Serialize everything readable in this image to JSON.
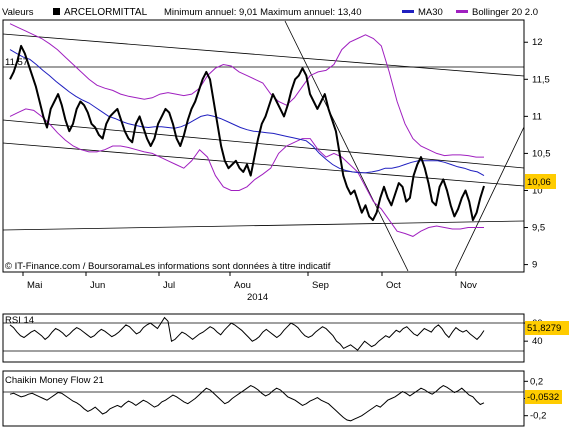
{
  "header": {
    "valeurs_label": "Valeurs",
    "instrument": "ARCELORMITTAL",
    "min_max": "Minimum annuel: 9,01 Maximum annuel: 13,40",
    "ma_legend": "MA30",
    "bollinger_legend": "Bollinger 20 2.0"
  },
  "footer": {
    "source": "© IT-Finance.com / BoursoramaLes informations sont données à titre indicatif"
  },
  "colors": {
    "price": "#000000",
    "ma": "#2020c0",
    "bollinger": "#a020c0",
    "trend": "#000000",
    "label_box": "#ffcc00"
  },
  "chart_data": [
    {
      "type": "line",
      "title": "ARCELORMITTAL",
      "x_axis": {
        "labels": [
          "Mai",
          "Jun",
          "Jul",
          "Aou",
          "Sep",
          "Oct",
          "Nov"
        ],
        "year_label": "2014"
      },
      "y_axis": {
        "ticks": [
          "12",
          "11,5",
          "11",
          "10,5",
          "10",
          "9,5",
          "9"
        ],
        "ylim": [
          8.9,
          12.3
        ],
        "position": "right"
      },
      "left_label": "11,57",
      "last_value_label": "10,06",
      "series": [
        {
          "name": "ARCELORMITTAL",
          "values": [
            11.5,
            11.6,
            11.75,
            11.95,
            11.85,
            11.7,
            11.55,
            11.4,
            11.2,
            11.0,
            10.85,
            11.1,
            11.2,
            11.3,
            11.15,
            10.95,
            10.8,
            10.9,
            11.1,
            11.2,
            11.15,
            11.05,
            10.9,
            10.85,
            10.75,
            10.7,
            10.9,
            11.0,
            11.05,
            11.1,
            10.95,
            10.8,
            10.7,
            10.65,
            10.9,
            11.0,
            10.85,
            10.7,
            10.6,
            10.7,
            10.9,
            11.0,
            11.1,
            11.05,
            10.9,
            10.7,
            10.6,
            10.75,
            10.95,
            11.1,
            11.2,
            11.35,
            11.5,
            11.6,
            11.5,
            11.2,
            10.9,
            10.6,
            10.4,
            10.3,
            10.35,
            10.4,
            10.3,
            10.25,
            10.35,
            10.2,
            10.45,
            10.7,
            10.9,
            11.0,
            11.15,
            11.3,
            11.2,
            11.1,
            11.0,
            11.15,
            11.35,
            11.5,
            11.55,
            11.65,
            11.55,
            11.3,
            11.2,
            11.1,
            11.2,
            11.3,
            11.1,
            10.95,
            10.8,
            10.5,
            10.2,
            10.05,
            9.95,
            10.0,
            9.85,
            9.7,
            9.8,
            9.65,
            9.6,
            9.7,
            9.9,
            10.05,
            9.9,
            9.8,
            9.95,
            10.1,
            10.05,
            9.85,
            9.9,
            10.2,
            10.35,
            10.45,
            10.3,
            10.1,
            9.85,
            9.8,
            10.05,
            10.15,
            10.0,
            9.8,
            9.65,
            9.75,
            9.9,
            10.0,
            9.85,
            9.6,
            9.7,
            9.9,
            10.06
          ]
        },
        {
          "name": "MA30",
          "values": [
            11.9,
            11.85,
            11.8,
            11.77,
            11.7,
            11.62,
            11.55,
            11.47,
            11.4,
            11.33,
            11.27,
            11.22,
            11.18,
            11.12,
            11.06,
            11.0,
            10.97,
            10.93,
            10.9,
            10.88,
            10.86,
            10.85,
            10.86,
            10.86,
            10.85,
            10.84,
            10.86,
            10.9,
            10.95,
            11.0,
            11.02,
            11.0,
            10.97,
            10.93,
            10.89,
            10.85,
            10.82,
            10.8,
            10.79,
            10.78,
            10.77,
            10.75,
            10.73,
            10.71,
            10.69,
            10.67,
            10.6,
            10.5,
            10.42,
            10.35,
            10.3,
            10.27,
            10.25,
            10.24,
            10.24,
            10.25,
            10.27,
            10.3,
            10.3,
            10.32,
            10.35,
            10.38,
            10.4,
            10.4,
            10.4,
            10.4,
            10.38,
            10.35,
            10.32,
            10.3,
            10.27,
            10.25,
            10.2
          ]
        },
        {
          "name": "Bollinger 20 2.0 (haut)",
          "values": [
            12.25,
            12.2,
            12.15,
            12.1,
            12.05,
            11.98,
            11.9,
            11.8,
            11.7,
            11.6,
            11.5,
            11.42,
            11.38,
            11.35,
            11.3,
            11.27,
            11.25,
            11.23,
            11.25,
            11.3,
            11.32,
            11.3,
            11.28,
            11.3,
            11.38,
            11.55,
            11.65,
            11.7,
            11.68,
            11.6,
            11.55,
            11.5,
            11.45,
            11.3,
            11.2,
            11.15,
            11.25,
            11.4,
            11.55,
            11.6,
            11.62,
            11.7,
            11.9,
            12.0,
            12.05,
            12.1,
            12.05,
            11.95,
            11.6,
            11.2,
            10.9,
            10.7,
            10.6,
            10.55,
            10.5,
            10.47,
            10.48,
            10.48,
            10.47,
            10.45,
            10.45
          ]
        },
        {
          "name": "Bollinger 20 2.0 (bas)",
          "values": [
            11.0,
            11.05,
            11.1,
            11.08,
            11.0,
            10.9,
            10.78,
            10.68,
            10.6,
            10.55,
            10.52,
            10.52,
            10.55,
            10.6,
            10.6,
            10.58,
            10.55,
            10.52,
            10.5,
            10.45,
            10.4,
            10.35,
            10.3,
            10.4,
            10.55,
            10.45,
            10.2,
            10.05,
            10.0,
            10.0,
            10.05,
            10.15,
            10.22,
            10.3,
            10.5,
            10.6,
            10.65,
            10.7,
            10.7,
            10.55,
            10.45,
            10.5,
            10.45,
            10.35,
            10.25,
            10.05,
            9.85,
            9.75,
            9.6,
            9.45,
            9.42,
            9.38,
            9.45,
            9.5,
            9.52,
            9.5,
            9.48,
            9.48,
            9.5,
            9.5,
            9.5
          ]
        }
      ]
    },
    {
      "type": "line",
      "title": "RSI 14",
      "y_axis": {
        "ticks": [
          "60",
          "40"
        ],
        "ylim": [
          17,
          70
        ],
        "position": "right"
      },
      "last_value_label": "51,8279",
      "series": [
        {
          "name": "RSI 14",
          "values": [
            58,
            55,
            50,
            46,
            44,
            47,
            50,
            52,
            49,
            46,
            42,
            45,
            50,
            54,
            52,
            49,
            45,
            48,
            52,
            55,
            53,
            50,
            47,
            44,
            46,
            50,
            53,
            51,
            48,
            45,
            47,
            50,
            54,
            58,
            56,
            52,
            48,
            50,
            55,
            58,
            60,
            57,
            54,
            60,
            66,
            62,
            40,
            42,
            46,
            50,
            48,
            45,
            42,
            45,
            48,
            50,
            53,
            56,
            54,
            50,
            47,
            52,
            56,
            60,
            58,
            55,
            52,
            48,
            44,
            40,
            42,
            45,
            50,
            53,
            50,
            47,
            44,
            47,
            52,
            56,
            60,
            58,
            55,
            50,
            46,
            44,
            46,
            50,
            53,
            56,
            54,
            50,
            46,
            40,
            37,
            32,
            34,
            36,
            33,
            30,
            35,
            40,
            37,
            34,
            36,
            40,
            43,
            46,
            44,
            48,
            52,
            50,
            54,
            56,
            52,
            48,
            46,
            50,
            54,
            52,
            50,
            55,
            58,
            54,
            48,
            44,
            50,
            55,
            52,
            50,
            52,
            48,
            45,
            42,
            46,
            51.8
          ]
        }
      ]
    },
    {
      "type": "line",
      "title": "Chaikin Money Flow 21",
      "y_axis": {
        "ticks": [
          "0,2",
          "0",
          "-0,2"
        ],
        "ylim": [
          -0.32,
          0.32
        ],
        "position": "right"
      },
      "last_value_label": "-0,0532",
      "series": [
        {
          "name": "Chaikin Money Flow 21",
          "values": [
            0.05,
            0.06,
            0.04,
            0.02,
            0.03,
            0.05,
            0.06,
            0.04,
            0.02,
            0.0,
            -0.02,
            0.01,
            0.04,
            0.07,
            0.06,
            0.03,
            0.0,
            -0.03,
            -0.05,
            -0.08,
            -0.12,
            -0.15,
            -0.13,
            -0.1,
            -0.14,
            -0.18,
            -0.16,
            -0.12,
            -0.1,
            -0.08,
            -0.1,
            -0.06,
            -0.03,
            -0.05,
            -0.08,
            -0.05,
            -0.02,
            -0.04,
            -0.07,
            -0.1,
            -0.08,
            -0.04,
            -0.02,
            0.01,
            0.04,
            0.02,
            -0.01,
            -0.04,
            -0.06,
            -0.03,
            0.0,
            0.04,
            0.08,
            0.12,
            0.1,
            0.06,
            0.02,
            -0.02,
            -0.06,
            -0.04,
            0.0,
            0.03,
            0.06,
            0.09,
            0.12,
            0.15,
            0.13,
            0.1,
            0.06,
            0.03,
            0.05,
            0.09,
            0.12,
            0.1,
            0.06,
            0.02,
            0.0,
            -0.02,
            -0.05,
            -0.08,
            -0.06,
            -0.03,
            -0.01,
            0.01,
            -0.02,
            -0.04,
            -0.06,
            -0.1,
            -0.14,
            -0.18,
            -0.22,
            -0.25,
            -0.26,
            -0.24,
            -0.22,
            -0.2,
            -0.17,
            -0.14,
            -0.11,
            -0.08,
            -0.1,
            -0.06,
            -0.02,
            0.0,
            0.02,
            0.05,
            0.08,
            0.06,
            0.03,
            0.06,
            0.09,
            0.12,
            0.1,
            0.07,
            0.05,
            0.08,
            0.12,
            0.15,
            0.13,
            0.1,
            0.07,
            0.09,
            0.12,
            0.08,
            0.04,
            0.02,
            -0.03,
            -0.07,
            -0.05
          ]
        }
      ]
    }
  ]
}
